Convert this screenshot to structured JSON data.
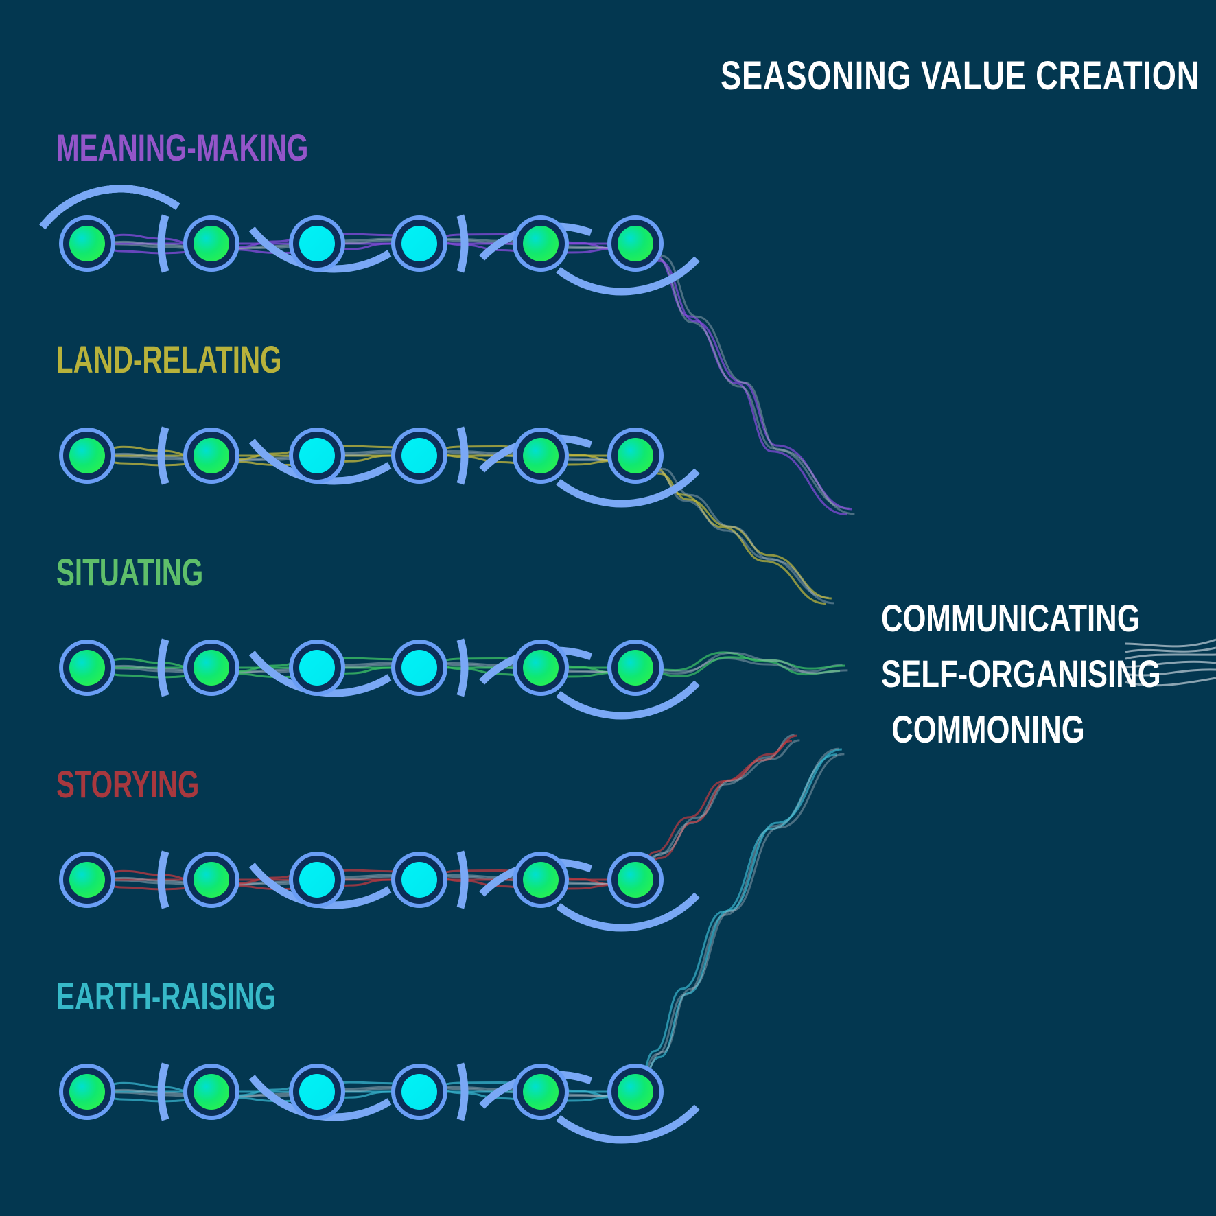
{
  "title": "SEASONING VALUE CREATION",
  "colors": {
    "background": "#033750",
    "ring": "#6a9ef5",
    "arc": "#7aa8f5",
    "node_green": "#1de86a",
    "node_cyan": "#00f0f5",
    "outgoing_threads": "#b8c8d2"
  },
  "streams": [
    {
      "label": "MEANING-MAKING",
      "color": "#9355c9",
      "thread_color": "#8a4ce0"
    },
    {
      "label": "LAND-RELATING",
      "color": "#b8b23b",
      "thread_color": "#c8bc3c"
    },
    {
      "label": "SITUATING",
      "color": "#5fbf6a",
      "thread_color": "#3fc766"
    },
    {
      "label": "STORYING",
      "color": "#a8383e",
      "thread_color": "#c23a40"
    },
    {
      "label": "EARTH-RAISING",
      "color": "#37b9c8",
      "thread_color": "#3ab6cf"
    }
  ],
  "nodes": [
    "green",
    "green",
    "cyan",
    "cyan",
    "green",
    "green"
  ],
  "outcomes": [
    "COMMUNICATING",
    "SELF-ORGANISING",
    "COMMONING"
  ]
}
